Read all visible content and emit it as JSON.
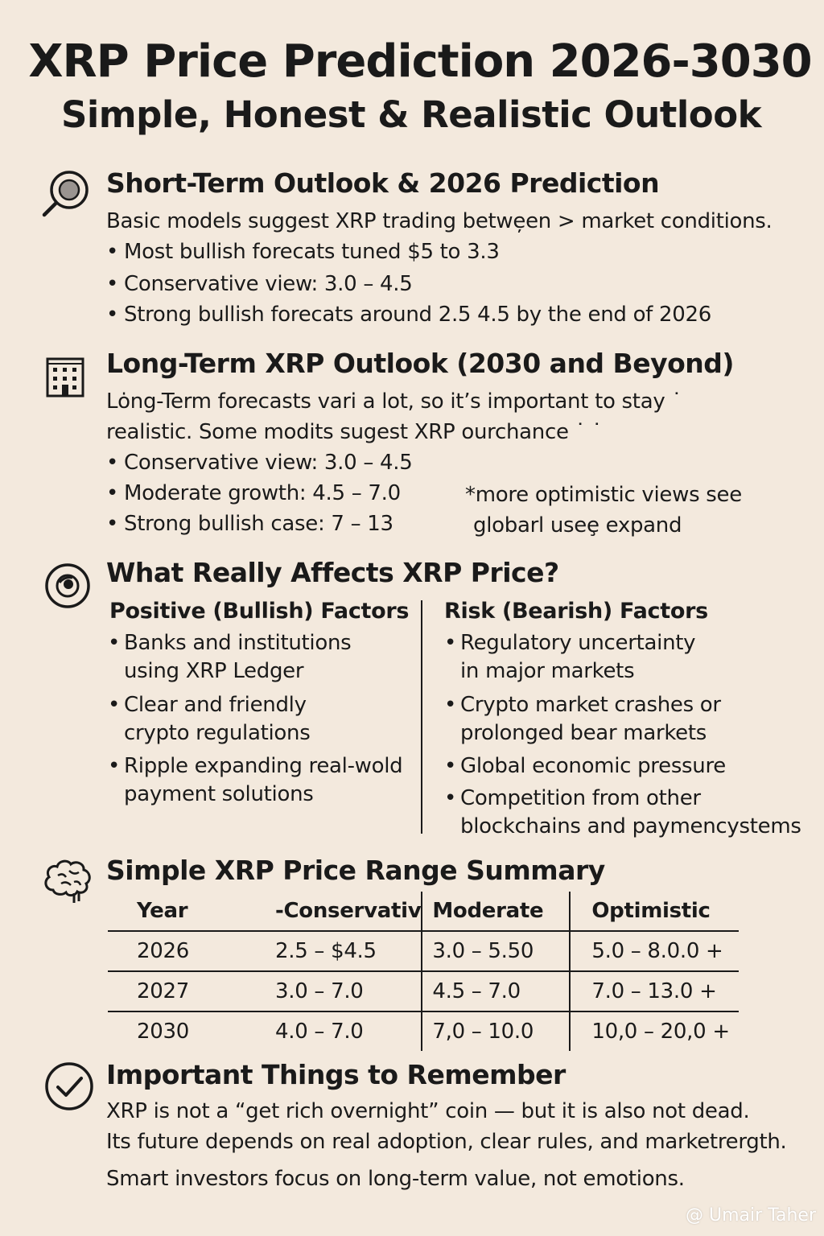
{
  "header": {
    "title": "XRP Price Prediction 2026-3030",
    "subtitle": "Simple, Honest & Realistic Outlook"
  },
  "short_term": {
    "icon": "magnifier-icon",
    "heading": "Short-Term Outlook & 2026 Prediction",
    "intro": "Basic models suggest XRP trading betwe̦en > market conditions.",
    "bullets": [
      "Most bullish forecats tuned $5 to 3.3",
      "Conservative view: 3.0 – 4.5",
      "Strong bullish forecats around 2.5 4.5 by the end of 2026"
    ]
  },
  "long_term": {
    "icon": "building-icon",
    "heading": "Long-Term XRP Outlook (2030 and Beyond)",
    "intro_lines": [
      "Lȯng-Term forecasts vari a lot, so it’s important to stay ˙",
      "realistic. Some modits sugest XRP ourchance ˙ ˙"
    ],
    "bullets": [
      "Conservative view: 3.0 – 4.5",
      "Moderate growth: 4.5 – 7.0",
      "Strong bullish case: 7 – 13"
    ],
    "note_lines": [
      "*more optimistic views see",
      "globarl useȩ expand"
    ]
  },
  "factors": {
    "icon": "target-icon",
    "heading": "What Really Affects XRP Price?",
    "positive": {
      "heading": "Positive (Bullish) Factors",
      "items": [
        "Banks and institutions\nusing XRP Ledger",
        "Clear and friendly\ncrypto regulations",
        "Ripple expanding real-wold\npayment solutions"
      ]
    },
    "risk": {
      "heading": "Risk (Bearish) Factors",
      "items": [
        "Regulatory uncertainty\nin major markets",
        "Crypto market crashes or\nprolonged bear markets",
        "Global economic pressure",
        "Competition from other\nblockchains and paymencystems"
      ]
    }
  },
  "summary": {
    "icon": "brain-icon",
    "heading": "Simple XRP Price Range Summary",
    "columns": [
      "Year",
      "-Conservativ",
      "Moderate",
      "Optimistic"
    ],
    "rows": [
      [
        "2026",
        "2.5 – $4.5",
        "3.0 – 5.50",
        "5.0 – 8.0.0 +"
      ],
      [
        "2027",
        "3.0 – 7.0",
        "4.5 – 7.0",
        "7.0 – 13.0 +"
      ],
      [
        "2030",
        "4.0 – 7.0",
        "7,0 – 10.0",
        "10,0 – 20,0 +"
      ]
    ]
  },
  "remember": {
    "icon": "checkmark-icon",
    "heading": "Important Things to Remember",
    "lines": [
      "XRP is not a “get rich overnight” coin — but it is also not dead.",
      "Its future depends on real adoption, clear rules, and marketrergth.",
      "Smart investors focus on long-term value, not emotions."
    ]
  },
  "watermark": "@ Umair Taher"
}
